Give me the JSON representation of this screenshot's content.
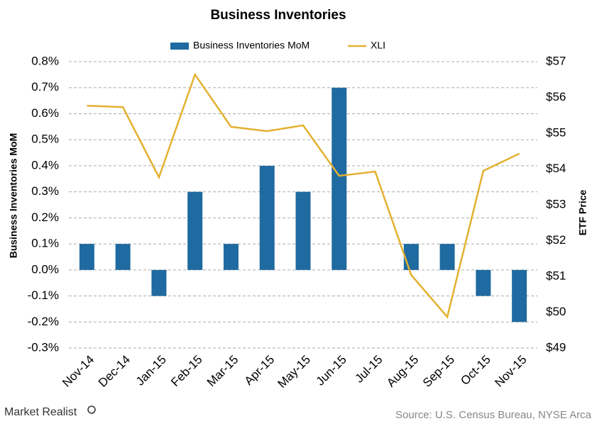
{
  "chart_data": {
    "type": "bar_line",
    "title": "Business  Inventories",
    "ylabel": "Business Inventories MoM",
    "y2label": "ETF Price",
    "source": "Source: U.S. Census Bureau, NYSE Arca",
    "brand": "Market Realist",
    "categories": [
      "Nov-14",
      "Dec-14",
      "Jan-15",
      "Feb-15",
      "Mar-15",
      "Apr-15",
      "May-15",
      "Jun-15",
      "Jul-15",
      "Aug-15",
      "Sep-15",
      "Oct-15",
      "Nov-15"
    ],
    "series": [
      {
        "name": "Business Inventories MoM",
        "type": "bar",
        "color": "#1f6aa0",
        "values": [
          0.1,
          0.1,
          -0.1,
          0.3,
          0.1,
          0.4,
          0.3,
          0.7,
          0,
          0.1,
          0.1,
          -0.1,
          -0.2
        ]
      },
      {
        "name": "XLI",
        "type": "line",
        "color": "#e3b130",
        "axis": "y2",
        "values": [
          55.77,
          55.73,
          53.77,
          56.64,
          55.18,
          55.06,
          55.22,
          53.81,
          53.93,
          51.04,
          49.87,
          53.95,
          54.43
        ]
      }
    ],
    "ylim": [
      -0.3,
      0.8
    ],
    "yticks": [
      {
        "value": -0.3,
        "label": "-0.3%"
      },
      {
        "value": -0.2,
        "label": "-0.2%"
      },
      {
        "value": -0.1,
        "label": "-0.1%"
      },
      {
        "value": 0,
        "label": "0.0%"
      },
      {
        "value": 0.1,
        "label": "0.1%"
      },
      {
        "value": 0.2,
        "label": "0.2%"
      },
      {
        "value": 0.3,
        "label": "0.3%"
      },
      {
        "value": 0.4,
        "label": "0.4%"
      },
      {
        "value": 0.5,
        "label": "0.5%"
      },
      {
        "value": 0.6,
        "label": "0.6%"
      },
      {
        "value": 0.7,
        "label": "0.7%"
      },
      {
        "value": 0.8,
        "label": "0.8%"
      }
    ],
    "y2lim": [
      49,
      57
    ],
    "y2ticks": [
      {
        "value": 49,
        "label": "$49"
      },
      {
        "value": 50,
        "label": "$50"
      },
      {
        "value": 51,
        "label": "$51"
      },
      {
        "value": 52,
        "label": "$52"
      },
      {
        "value": 53,
        "label": "$53"
      },
      {
        "value": 54,
        "label": "$54"
      },
      {
        "value": 55,
        "label": "$55"
      },
      {
        "value": 56,
        "label": "$56"
      },
      {
        "value": 57,
        "label": "$57"
      }
    ],
    "grid": true
  }
}
